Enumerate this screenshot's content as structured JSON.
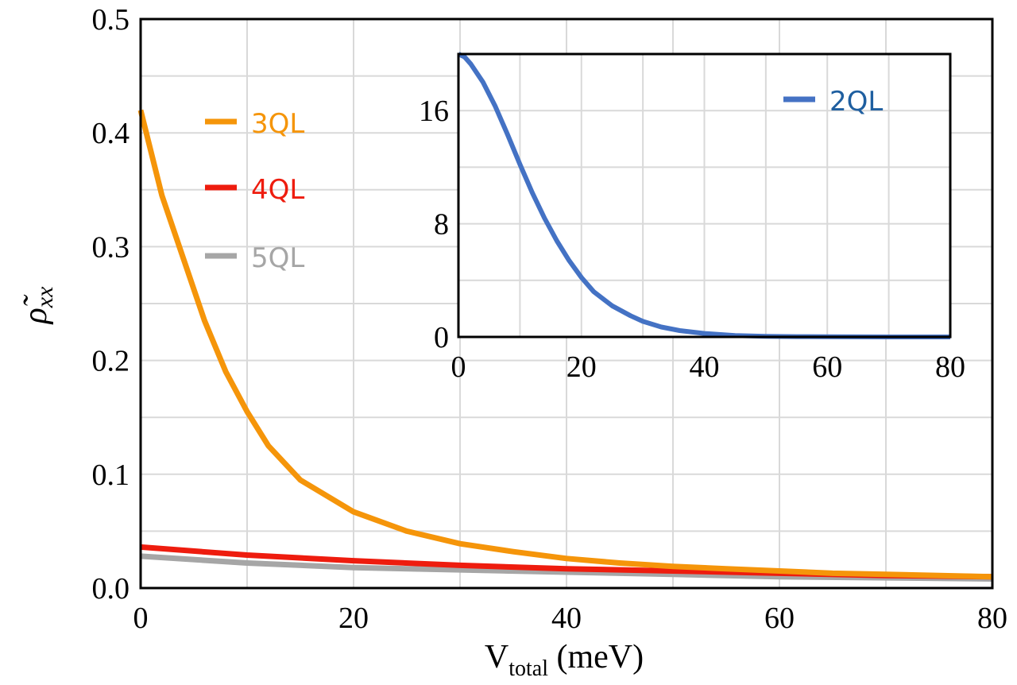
{
  "chart_data": [
    {
      "id": "main",
      "type": "line",
      "xlabel_main": "V",
      "xlabel_sub": "total",
      "xlabel_unit": " (meV)",
      "ylabel_main": "ρ̃",
      "ylabel_sub": "xx",
      "xlim": [
        0,
        80
      ],
      "ylim": [
        0,
        0.5
      ],
      "xticks": [
        0,
        20,
        40,
        60,
        80
      ],
      "yticks": [
        0,
        0.1,
        0.2,
        0.3,
        0.4,
        0.5
      ],
      "ytick_labels": [
        "0.0",
        "0.1",
        "0.2",
        "0.3",
        "0.4",
        "0.5"
      ],
      "grid": true,
      "legend_position": "upper-left",
      "series": [
        {
          "name": "3QL",
          "color": "#f5950a",
          "x": [
            0,
            2,
            4,
            6,
            8,
            10,
            12,
            15,
            20,
            25,
            30,
            35,
            40,
            45,
            50,
            55,
            60,
            65,
            70,
            75,
            80
          ],
          "y": [
            0.42,
            0.345,
            0.29,
            0.235,
            0.19,
            0.155,
            0.125,
            0.095,
            0.067,
            0.05,
            0.039,
            0.032,
            0.026,
            0.022,
            0.019,
            0.017,
            0.015,
            0.013,
            0.012,
            0.011,
            0.01
          ]
        },
        {
          "name": "4QL",
          "color": "#ee1c0e",
          "x": [
            0,
            10,
            20,
            30,
            40,
            50,
            60,
            70,
            80
          ],
          "y": [
            0.036,
            0.029,
            0.024,
            0.02,
            0.017,
            0.015,
            0.013,
            0.011,
            0.01
          ]
        },
        {
          "name": "5QL",
          "color": "#a6a6a6",
          "x": [
            0,
            10,
            20,
            30,
            40,
            50,
            60,
            70,
            80
          ],
          "y": [
            0.028,
            0.022,
            0.018,
            0.016,
            0.014,
            0.012,
            0.01,
            0.009,
            0.008
          ]
        }
      ]
    },
    {
      "id": "inset",
      "type": "line",
      "xlim": [
        0,
        80
      ],
      "ylim": [
        0,
        20
      ],
      "xticks": [
        0,
        20,
        40,
        60,
        80
      ],
      "yticks": [
        0,
        8,
        16
      ],
      "grid": true,
      "legend_position": "upper-right",
      "series": [
        {
          "name": "2QL",
          "color": "#4472c4",
          "legend_text_color": "#1f5fa0",
          "x": [
            0,
            1,
            2,
            4,
            6,
            8,
            10,
            12,
            14,
            16,
            18,
            20,
            22,
            25,
            28,
            30,
            33,
            36,
            40,
            45,
            50,
            55,
            60,
            70,
            80
          ],
          "y": [
            20,
            19.8,
            19.3,
            18,
            16.3,
            14.3,
            12.2,
            10.2,
            8.4,
            6.8,
            5.4,
            4.2,
            3.2,
            2.2,
            1.5,
            1.1,
            0.7,
            0.45,
            0.25,
            0.1,
            0.04,
            0.02,
            0.01,
            0.0,
            0.0
          ]
        }
      ]
    }
  ]
}
